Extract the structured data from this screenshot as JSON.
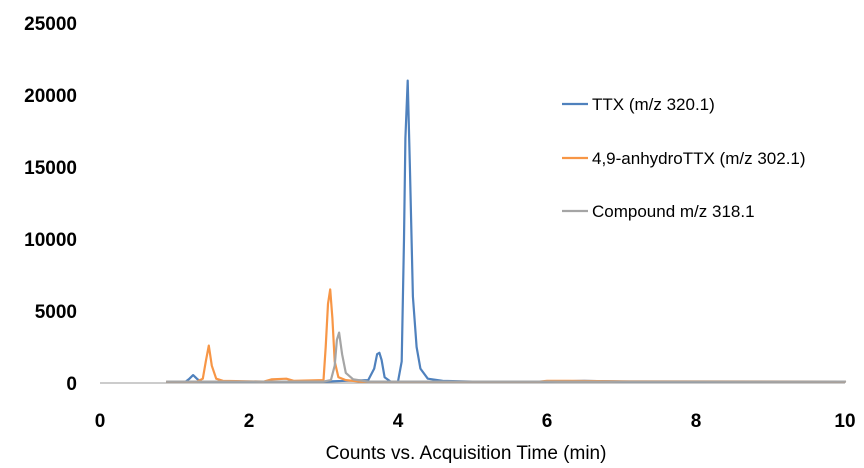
{
  "chart_data": {
    "type": "line",
    "title": "",
    "xlabel": "Counts vs. Acquisition Time (min)",
    "ylabel": "",
    "xlim": [
      0,
      10
    ],
    "ylim": [
      0,
      25000
    ],
    "x_ticks": [
      "0",
      "2",
      "4",
      "6",
      "8",
      "10"
    ],
    "y_ticks": [
      "0",
      "5000",
      "10000",
      "15000",
      "20000",
      "25000"
    ],
    "grid": false,
    "legend_position": "right",
    "series": [
      {
        "name": "TTX (m/z 320.1)",
        "color": "#4F81BD",
        "x": [
          0.9,
          1.15,
          1.2,
          1.25,
          1.3,
          1.35,
          1.6,
          2.0,
          2.5,
          3.0,
          3.3,
          3.6,
          3.68,
          3.72,
          3.75,
          3.78,
          3.82,
          3.9,
          4.0,
          4.05,
          4.08,
          4.1,
          4.13,
          4.16,
          4.2,
          4.25,
          4.3,
          4.4,
          4.6,
          5.0,
          6.0,
          6.5,
          7.0,
          10.0
        ],
        "y": [
          100,
          100,
          300,
          550,
          300,
          100,
          100,
          100,
          100,
          100,
          150,
          200,
          1000,
          2000,
          2100,
          1600,
          400,
          100,
          100,
          1500,
          10000,
          17000,
          21000,
          15000,
          6000,
          2500,
          1000,
          300,
          150,
          100,
          100,
          150,
          100,
          100
        ]
      },
      {
        "name": "4,9-anhydroTTX (m/z 302.1)",
        "color": "#F79646",
        "x": [
          0.9,
          1.3,
          1.38,
          1.42,
          1.46,
          1.5,
          1.56,
          1.65,
          2.2,
          2.3,
          2.5,
          2.6,
          3.0,
          3.03,
          3.06,
          3.09,
          3.12,
          3.15,
          3.2,
          3.3,
          3.5,
          4.0,
          5.0,
          5.9,
          6.0,
          6.3,
          7.1,
          10.0
        ],
        "y": [
          100,
          100,
          300,
          1500,
          2600,
          1200,
          300,
          150,
          100,
          250,
          300,
          150,
          200,
          2500,
          5500,
          6500,
          4500,
          1500,
          400,
          200,
          100,
          100,
          100,
          100,
          150,
          150,
          120,
          100
        ]
      },
      {
        "name": "Compound m/z 318.1",
        "color": "#A5A5A5",
        "x": [
          0.9,
          3.0,
          3.1,
          3.15,
          3.18,
          3.21,
          3.25,
          3.3,
          3.4,
          3.6,
          10.0
        ],
        "y": [
          100,
          100,
          200,
          1200,
          3000,
          3500,
          2000,
          700,
          250,
          100,
          100
        ]
      }
    ]
  }
}
